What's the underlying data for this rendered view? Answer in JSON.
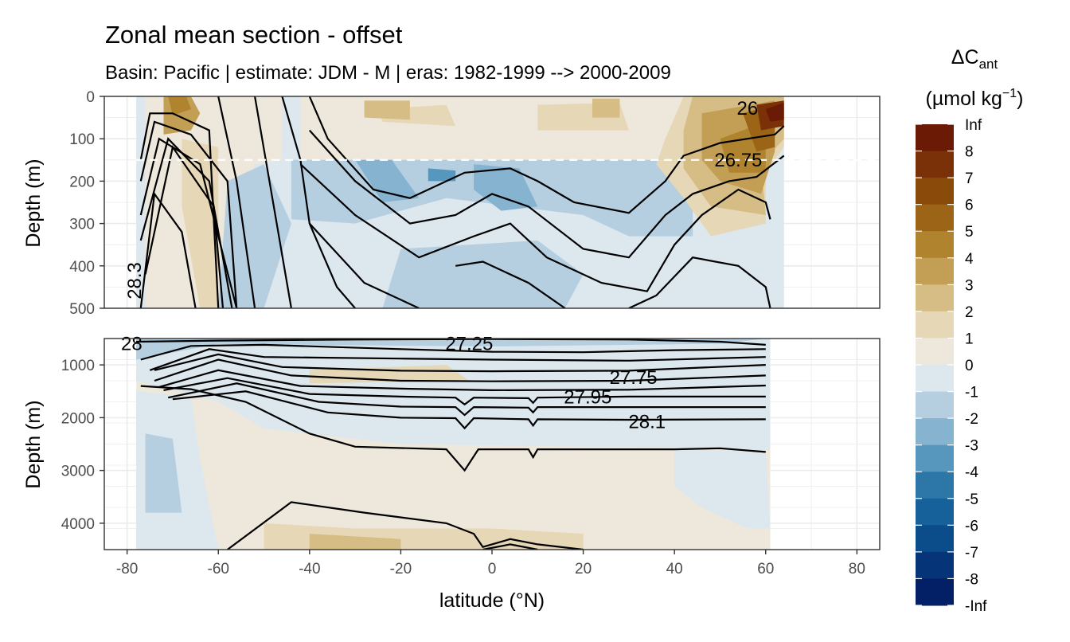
{
  "chart_data": {
    "type": "heatmap",
    "title": "Zonal mean section - offset",
    "subtitle": "Basin: Pacific | estimate: JDM - M | eras: 1982-1999 --> 2000-2009",
    "xlabel": "latitude (°N)",
    "ylabel": "Depth (m)",
    "x_ticks": [
      -80,
      -60,
      -40,
      -20,
      0,
      20,
      40,
      60,
      80
    ],
    "x_tick_labels": [
      "-80",
      "-60",
      "-40",
      "-20",
      "0",
      "20",
      "40",
      "60",
      "80"
    ],
    "xlim": [
      -85,
      85
    ],
    "grid": true,
    "legend_position": "right",
    "legend": {
      "title_main": "ΔC",
      "title_sub": "ant",
      "unit_main": "(µmol kg",
      "unit_sup": "−1",
      "unit_end": ")",
      "levels": [
        "Inf",
        "8",
        "7",
        "6",
        "5",
        "4",
        "3",
        "2",
        "1",
        "0",
        "-1",
        "-2",
        "-3",
        "-4",
        "-5",
        "-6",
        "-7",
        "-8",
        "-Inf"
      ],
      "colors": [
        "#6b1a05",
        "#7a3108",
        "#8a4a0a",
        "#9b6416",
        "#b0832e",
        "#c39f55",
        "#d6bd85",
        "#e6d7b6",
        "#eee8dc",
        "#dce7ee",
        "#b5cfe1",
        "#86b3d0",
        "#5796bd",
        "#2d77a8",
        "#16619a",
        "#0b4c8a",
        "#063478",
        "#031f65"
      ]
    },
    "panels": [
      {
        "name": "upper",
        "ylim": [
          0,
          500
        ],
        "y_ticks": [
          0,
          100,
          200,
          300,
          400,
          500
        ],
        "y_tick_labels": [
          "0",
          "100",
          "200",
          "300",
          "400",
          "500"
        ],
        "reference_line_depth": 150,
        "data_lat_range": [
          -78,
          64
        ],
        "contour_labels": [
          {
            "text": "26",
            "lat": 56,
            "depth": 28
          },
          {
            "text": "26.75",
            "lat": 54,
            "depth": 150
          },
          {
            "text": "28.3",
            "lat": -77,
            "depth": 420
          }
        ]
      },
      {
        "name": "lower",
        "ylim": [
          500,
          4500
        ],
        "y_ticks": [
          1000,
          2000,
          3000,
          4000
        ],
        "y_tick_labels": [
          "1000",
          "2000",
          "3000",
          "4000"
        ],
        "data_lat_range": [
          -78,
          61
        ],
        "contour_labels": [
          {
            "text": "27.25",
            "lat": -5,
            "depth": 600
          },
          {
            "text": "27.75",
            "lat": 31,
            "depth": 1240
          },
          {
            "text": "27.95",
            "lat": 21,
            "depth": 1610
          },
          {
            "text": "28.1",
            "lat": 34,
            "depth": 2080
          },
          {
            "text": "28",
            "lat": -79,
            "depth": 600
          }
        ]
      }
    ]
  }
}
